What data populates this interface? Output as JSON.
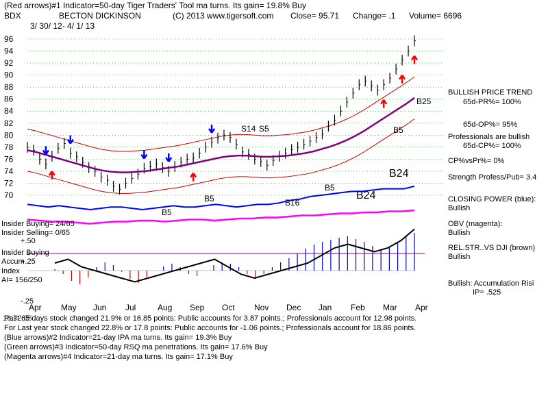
{
  "header": {
    "line1": "(Red arrows)#1 Indicator=50-day Tiger Traders' Tool ma turns. Its gain= 19.8% Buy",
    "ticker": "BDX",
    "company": "BECTON DICKINSON",
    "copyright": "(C) 2013 www.tigersoft.com",
    "close": "Close=  95.71",
    "change": "Change= .1",
    "volume": "Volume= 6696",
    "date_range": "3/ 30/ 12-  4/ 1/ 13"
  },
  "right_panel": {
    "title": "BULLISH PRICE TREND",
    "pr": "65d-PR%= 100%",
    "op": "65d-OP%= 95%",
    "prof": "Professionals are bullish",
    "cp": "65d-CP%= 100%",
    "cpvspr": "CP%vsPr%=  0%",
    "strength": "Strength Profess/Pub= 3.4",
    "closing_power": "CLOSING POWER (blue):",
    "cp_state": "Bullish",
    "obv": "OBV (magenta):",
    "obv_state": "Bullish",
    "relstr": "REL.STR..VS DJI (brown)",
    "relstr_state": "Bullish",
    "accum": "Bullish: Accumulation Risi",
    "ip": "IP=  .525"
  },
  "insider": {
    "buying": "Insider Buying= 24/65",
    "selling": "Insider Selling= 0/65",
    "plus50": "+.50",
    "label": "Insider Buying",
    "accum": "Accum",
    "plus25": "+.25",
    "index": "Index",
    "ai": "AI= 156/250",
    "minus25": "-.25"
  },
  "footer": {
    "line1": "Past 65 days stock changed  21.9% or  16.85 points:  Public accounts for  3.87 points.;  Professionals account for  12.98 points.",
    "line2": "For Last year stock changed  22.8% or  17.8 points:  Public accounts for -1.06 points.;  Professionals account for  18.86 points.",
    "line3": "(Blue arrows)#2 Indicator=21-day IPA ma turns. Its gain= 19.3% Buy",
    "line4": "(Green arrows)#3 Indicator=50-day RSQ ma penetrations. Its gain= 17.6% Buy",
    "line5": "(Magenta arrows)#4 Indicator=21-day ma turns. Its gain= 17.1% Buy",
    "overprint": "16.72.05"
  },
  "colors": {
    "price": "#000000",
    "band": "#cc0000",
    "ma": "#800080",
    "closing_power": "#0000ff",
    "obv": "#ff00ff",
    "buy_red": "#ff0000",
    "buy_blue": "#0000ff",
    "grid": "#008000",
    "accum": "#0000cc",
    "distrib": "#cc0000"
  },
  "chart_data": {
    "type": "line",
    "title": "BECTON DICKINSON",
    "ylim": [
      68,
      97
    ],
    "y_ticks": [
      "96",
      "94",
      "92",
      "90",
      "88",
      "86",
      "84",
      "82",
      "80",
      "78",
      "76",
      "74",
      "72",
      "70"
    ],
    "x_ticks": [
      "Apr",
      "May",
      "Jun",
      "Jul",
      "Aug",
      "Sep",
      "Oct",
      "Nov",
      "Dec",
      "Jan",
      "Feb",
      "Mar",
      "Apr"
    ],
    "price": [
      78.0,
      77.5,
      76.0,
      75.2,
      76.5,
      77.8,
      78.6,
      77.0,
      76.4,
      75.5,
      74.6,
      74.0,
      73.0,
      72.5,
      71.5,
      71.0,
      72.0,
      72.8,
      73.5,
      74.5,
      74.8,
      75.2,
      74.6,
      74.0,
      74.8,
      75.5,
      76.0,
      76.2,
      77.0,
      78.0,
      78.8,
      79.5,
      80.0,
      79.6,
      78.5,
      77.2,
      76.8,
      76.0,
      75.6,
      75.0,
      75.8,
      76.5,
      77.0,
      77.6,
      78.0,
      78.5,
      79.0,
      79.6,
      80.2,
      81.5,
      82.5,
      84.0,
      85.5,
      87.0,
      88.4,
      89.0,
      88.2,
      87.5,
      88.4,
      89.5,
      91.0,
      92.5,
      94.0,
      95.71
    ],
    "ma50": [
      77.5,
      77.2,
      76.8,
      76.4,
      76.0,
      75.6,
      75.2,
      74.8,
      74.4,
      74.1,
      73.9,
      73.8,
      73.8,
      73.9,
      74.0,
      74.2,
      74.4,
      74.6,
      74.8,
      75.1,
      75.4,
      75.7,
      76.0,
      76.3,
      76.5,
      76.6,
      76.6,
      76.5,
      76.4,
      76.4,
      76.5,
      76.6,
      76.8,
      77.0,
      77.3,
      77.7,
      78.1,
      78.6,
      79.2,
      79.9,
      80.7,
      81.6,
      82.5,
      83.4,
      84.3,
      85.2,
      86.2
    ],
    "closing_power": [
      64,
      63,
      62,
      63,
      62,
      61,
      60,
      61,
      62,
      62,
      61,
      60,
      61,
      62,
      63,
      62,
      62,
      63,
      64,
      63,
      62,
      63,
      64,
      64,
      65,
      67,
      68,
      70,
      71,
      72,
      73,
      74,
      74,
      75,
      76,
      76,
      76,
      78
    ],
    "obv": [
      23,
      22,
      21,
      21,
      20,
      19,
      20,
      21,
      21,
      22,
      22,
      21,
      22,
      23,
      23,
      22,
      23,
      24,
      24,
      25,
      25,
      26,
      27,
      27,
      28,
      29,
      29,
      30,
      30,
      31,
      31,
      32
    ],
    "rel_str": [
      0.1,
      0.15,
      0.05,
      0.0,
      -0.05,
      -0.1,
      -0.15,
      -0.1,
      -0.05,
      0.0,
      0.05,
      0.1,
      0.15,
      0.05,
      -0.05,
      -0.1,
      -0.05,
      0.0,
      0.05,
      0.1,
      0.2,
      0.3,
      0.35,
      0.3,
      0.25,
      0.3,
      0.4,
      0.55
    ],
    "accum_index": [
      0.02,
      -0.05,
      -0.15,
      -0.2,
      -0.1,
      0.05,
      0.12,
      0.08,
      -0.02,
      -0.12,
      -0.18,
      -0.1,
      0.0,
      0.06,
      0.1,
      0.05,
      -0.05,
      -0.08,
      0.0,
      0.08,
      0.12,
      0.1,
      0.05,
      -0.05,
      -0.12,
      -0.05,
      0.05,
      0.12,
      0.18,
      0.25,
      0.32,
      0.38,
      0.42,
      0.45,
      0.48,
      0.5,
      0.46,
      0.42,
      0.36,
      0.3,
      0.35,
      0.42,
      0.5,
      0.55
    ],
    "annotations": [
      "S14",
      "S5",
      "B5",
      "B5",
      "B16",
      "B5",
      "B24",
      "B24",
      "B25",
      "B5"
    ]
  }
}
